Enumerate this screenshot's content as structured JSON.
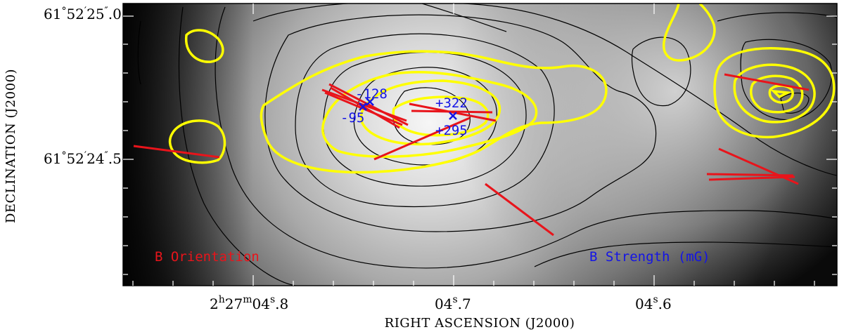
{
  "labels": {
    "b_orientation": "B Orientation",
    "b_strength": "B Strength (mG)"
  },
  "axes": {
    "x_title": "RIGHT ASCENSION (J2000)",
    "y_title": "DECLINATION (J2000)",
    "x_ticks": [
      {
        "h": "2",
        "m": "27",
        "s": "04",
        "frac": "8",
        "full": true
      },
      {
        "s": "04",
        "frac": "7",
        "full": false
      },
      {
        "s": "04",
        "frac": "6",
        "full": false
      }
    ],
    "y_ticks": [
      {
        "deg": "61",
        "min": "52",
        "sec": "25",
        "frac": "0"
      },
      {
        "deg": "61",
        "min": "52",
        "sec": "24",
        "frac": "5"
      }
    ]
  },
  "zeeman": [
    {
      "value": "-128"
    },
    {
      "value": "-95"
    },
    {
      "value": "+322"
    },
    {
      "value": "+295"
    }
  ],
  "colors": {
    "orientation": "#e8141b",
    "strength": "#1414e6",
    "contour_yellow": "#ffff00",
    "contour_black": "#000000"
  }
}
